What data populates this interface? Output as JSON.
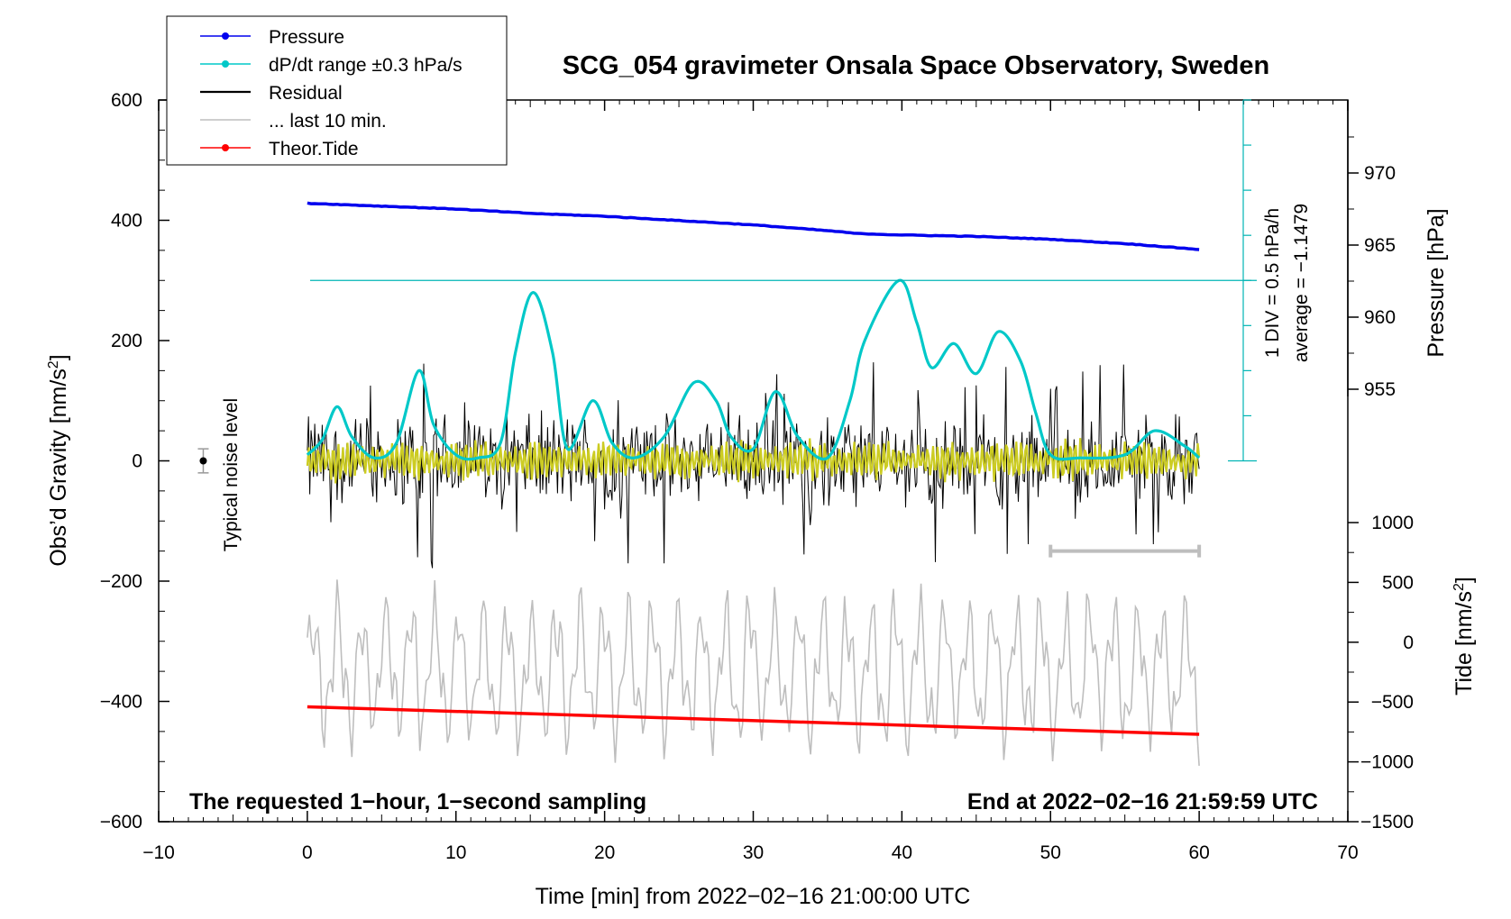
{
  "chart_data": {
    "type": "line",
    "title": "SCG_054 gravimeter Onsala Space Observatory, Sweden",
    "xlabel": "Time [min] from 2022−02−16 21:00:00 UTC",
    "ylabel_left": "Obs’d Gravity [nm/s",
    "ylabel_left_sup": "2",
    "ylabel_left_end": "]",
    "ylabel_right_pressure": "Pressure [hPa]",
    "ylabel_right_tide": "Tide [nm/s",
    "ylabel_right_tide_sup": "2",
    "ylabel_right_tide_end": "]",
    "xlim": [
      -10,
      70
    ],
    "ylim_left": [
      -600,
      600
    ],
    "x_ticks": [
      "−10",
      "0",
      "10",
      "20",
      "30",
      "40",
      "50",
      "60",
      "70"
    ],
    "y_left_ticks": [
      "600",
      "400",
      "200",
      "0",
      "−200",
      "−400",
      "−600"
    ],
    "pressure_ticks": [
      "970",
      "965",
      "960",
      "955"
    ],
    "tide_ticks": [
      "1000",
      "500",
      "0",
      "−500",
      "−1000",
      "−1500"
    ],
    "legend": [
      {
        "label": "Pressure",
        "color": "#0000ee",
        "marker": true
      },
      {
        "label": "dP/dt range ±0.3 hPa/s",
        "color": "#00c8c8",
        "marker": true
      },
      {
        "label": "Residual",
        "color": "#000000",
        "marker": false
      },
      {
        "label": "... last 10 min.",
        "color": "#bebebe",
        "marker": false
      },
      {
        "label": "Theor.Tide",
        "color": "#ff0000",
        "marker": true
      }
    ],
    "annotations": {
      "bottom_left": "The requested 1−hour, 1−second sampling",
      "bottom_right": "End at 2022−02−16 21:59:59 UTC",
      "noise_label": "Typical noise level",
      "div_label": "1 DIV = 0.5 hPa/h",
      "average_label": "average = −1.1479"
    },
    "series": [
      {
        "name": "Pressure",
        "color": "#0000ee",
        "unit": "hPa",
        "x": [
          0,
          5,
          10,
          15,
          20,
          25,
          30,
          35,
          37,
          40,
          45,
          50,
          55,
          60
        ],
        "y": [
          967.9,
          967.7,
          967.5,
          967.2,
          967.0,
          966.7,
          966.4,
          966.0,
          965.8,
          965.7,
          965.6,
          965.4,
          965.1,
          964.7
        ]
      },
      {
        "name": "dP/dt range ±0.3 hPa/s",
        "color": "#00c8c8",
        "unit": "nm/s2 (display)",
        "x": [
          0,
          1,
          2,
          3,
          4.5,
          6,
          7.5,
          8.5,
          10,
          11.5,
          13,
          14,
          15.2,
          16.5,
          17.5,
          19.2,
          20.5,
          22,
          24,
          26,
          27.5,
          28.5,
          30,
          31.5,
          33,
          35,
          36.5,
          37.5,
          39.8,
          41,
          42,
          43.5,
          45,
          46.5,
          48,
          49,
          50,
          52,
          55,
          57,
          59,
          60
        ],
        "y": [
          10,
          35,
          90,
          40,
          5,
          30,
          150,
          60,
          10,
          5,
          30,
          180,
          280,
          180,
          20,
          100,
          30,
          5,
          40,
          130,
          100,
          40,
          20,
          115,
          40,
          5,
          100,
          200,
          300,
          230,
          155,
          195,
          145,
          215,
          165,
          80,
          10,
          5,
          10,
          50,
          25,
          5
        ]
      },
      {
        "name": "Residual",
        "color": "#000000",
        "unit": "nm/s2",
        "x": [
          0,
          60
        ],
        "amplitude_nm_s2": 65,
        "min_nm_s2": -205,
        "max_nm_s2": 185
      },
      {
        "name": "Theor.Tide",
        "color": "#ff0000",
        "unit": "nm/s2",
        "x": [
          0,
          60
        ],
        "y": [
          -540,
          -770
        ]
      },
      {
        "name": "... last 10 min.",
        "color": "#bebebe",
        "unit": "nm/s2 (offset display)",
        "x": [
          0,
          60
        ],
        "ylim_display": [
          -510,
          -190
        ]
      },
      {
        "name": "filtered",
        "color": "#cccc22",
        "unit": "nm/s2",
        "x": [
          0,
          60
        ],
        "amplitude_nm_s2": 30
      }
    ],
    "noise_level": {
      "x": -7,
      "y": 0,
      "error": 20
    },
    "last_10_min_bar": {
      "x": [
        50,
        60
      ],
      "y": -150
    }
  }
}
